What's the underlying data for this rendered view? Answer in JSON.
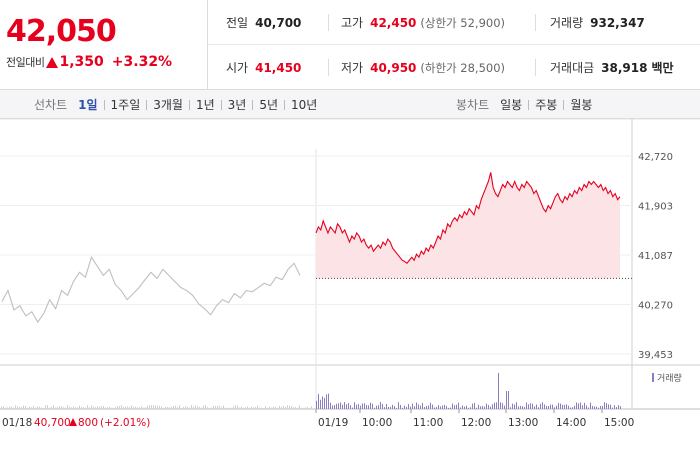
{
  "quote": {
    "price": "42,050",
    "change_label": "전일대비",
    "change_value": "1,350",
    "change_percent": "+3.32%",
    "prev_close_label": "전일",
    "prev_close": "40,700",
    "high_label": "고가",
    "high": "42,450",
    "upper_limit": "(상한가 52,900)",
    "volume_label": "거래량",
    "volume": "932,347",
    "open_label": "시가",
    "open": "41,450",
    "low_label": "저가",
    "low": "40,950",
    "lower_limit": "(하한가 28,500)",
    "trade_value_label": "거래대금",
    "trade_value": "38,918",
    "trade_value_unit": "백만",
    "up_color": "#e6001e"
  },
  "toolbar": {
    "line_label": "선차트",
    "line_periods": [
      "1일",
      "1주일",
      "3개월",
      "1년",
      "3년",
      "5년",
      "10년"
    ],
    "active_line_period": "1일",
    "candle_label": "봉차트",
    "candle_periods": [
      "일봉",
      "주봉",
      "월봉"
    ]
  },
  "chart_data": {
    "type": "line",
    "y_ticks": [
      "42,720",
      "41,903",
      "41,087",
      "40,270",
      "39,453"
    ],
    "ylim": [
      39453,
      42720
    ],
    "prev_close_line": 40700,
    "x_ticks": [
      "01/19",
      "10:00",
      "11:00",
      "12:00",
      "13:00",
      "14:00",
      "15:00"
    ],
    "prev_day_label": "01/18",
    "prev_day_close": "40,700",
    "prev_day_change": "800",
    "prev_day_pct": "(+2.01%)",
    "volume_legend": "거래량",
    "series": [
      {
        "x": [
          0,
          2,
          4,
          6,
          8,
          10,
          12,
          14,
          16,
          18,
          20,
          22,
          24,
          26,
          28,
          30,
          32,
          34,
          36,
          38,
          40,
          42,
          44,
          46,
          48,
          50,
          52,
          54,
          56,
          58,
          60,
          62,
          64,
          66,
          68,
          70,
          72,
          74,
          76,
          78,
          80,
          82,
          84,
          86,
          88,
          90,
          92,
          94,
          96,
          98,
          100
        ],
        "y": [
          40320,
          40500,
          40180,
          40250,
          40080,
          40150,
          39980,
          40120,
          40350,
          40200,
          40500,
          40420,
          40650,
          40800,
          40720,
          41050,
          40900,
          40750,
          40850,
          40600,
          40500,
          40350,
          40450,
          40550,
          40680,
          40800,
          40700,
          40850,
          40750,
          40650,
          40550,
          40500,
          40420,
          40280,
          40200,
          40100,
          40250,
          40350,
          40300,
          40450,
          40380,
          40500,
          40480,
          40550,
          40620,
          40580,
          40720,
          40680,
          40850,
          40950,
          40750
        ]
      },
      {
        "x": [
          0,
          3,
          6,
          9,
          12,
          15,
          18,
          21,
          24,
          27,
          30,
          33,
          36,
          39,
          42,
          45,
          48,
          51,
          54,
          57,
          60,
          63,
          66,
          69,
          72,
          75,
          78,
          81,
          84,
          87,
          90,
          93,
          96,
          99,
          102,
          105,
          108,
          111,
          114,
          117,
          120,
          123,
          126,
          129,
          132,
          135,
          138,
          141,
          144,
          147,
          150,
          153,
          156,
          159,
          162,
          165,
          168,
          171,
          174,
          177,
          180,
          183,
          186,
          189,
          192,
          195,
          198,
          201,
          204,
          207,
          210,
          213,
          216,
          219,
          222,
          225,
          228,
          231,
          234,
          237,
          240,
          243,
          246,
          249,
          252,
          255,
          258,
          261,
          264,
          267,
          270,
          273,
          276,
          279,
          282,
          285,
          288,
          291,
          294,
          297,
          300,
          303,
          306,
          309,
          312,
          315,
          318,
          321,
          324,
          327,
          330,
          333,
          336,
          339,
          342,
          345,
          348,
          351,
          354,
          357,
          360,
          363,
          366,
          369,
          372,
          375,
          378,
          381
        ],
        "y": [
          41450,
          41550,
          41500,
          41650,
          41550,
          41450,
          41550,
          41500,
          41450,
          41600,
          41550,
          41450,
          41500,
          41400,
          41300,
          41400,
          41350,
          41450,
          41400,
          41300,
          41350,
          41250,
          41200,
          41250,
          41150,
          41200,
          41250,
          41200,
          41300,
          41250,
          41350,
          41300,
          41200,
          41150,
          41100,
          41050,
          41000,
          40980,
          40950,
          41000,
          41050,
          41000,
          41100,
          41050,
          41150,
          41100,
          41200,
          41150,
          41250,
          41200,
          41300,
          41400,
          41350,
          41500,
          41450,
          41600,
          41550,
          41650,
          41700,
          41650,
          41750,
          41700,
          41800,
          41750,
          41850,
          41800,
          41750,
          41900,
          41850,
          42000,
          42100,
          42200,
          42300,
          42450,
          42200,
          42100,
          42050,
          42150,
          42250,
          42200,
          42300,
          42250,
          42200,
          42300,
          42200,
          42150,
          42250,
          42200,
          42300,
          42250,
          42200,
          42100,
          42150,
          42050,
          41950,
          41850,
          41800,
          41900,
          41850,
          41950,
          42050,
          42100,
          42000,
          41950,
          42050,
          42000,
          42100,
          42050,
          42150,
          42100,
          42200,
          42150,
          42250,
          42200,
          42300,
          42250,
          42300,
          42250,
          42200,
          42250,
          42150,
          42200,
          42100,
          42150,
          42050,
          42100,
          42000,
          42050
        ]
      }
    ]
  }
}
